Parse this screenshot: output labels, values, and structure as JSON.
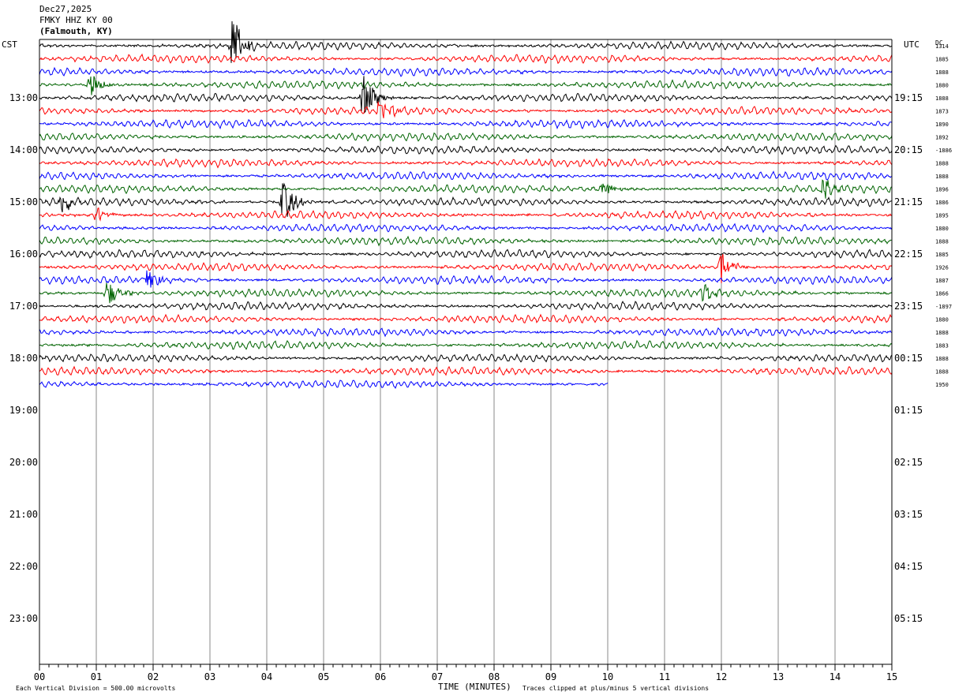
{
  "header": {
    "date": "Dec27,2025",
    "station": "FMKY HHZ KY 00",
    "location": "(Falmouth, KY)"
  },
  "axes": {
    "left_label": "CST",
    "right_label": "UTC",
    "dc_label": "DC"
  },
  "footer": {
    "vertical_division": "Each Vertical Division =  500.00 microvolts",
    "xlabel": "TIME (MINUTES)",
    "clip_note": "Traces clipped at plus/minus 5 vertical divisions"
  },
  "chart_data": {
    "type": "line",
    "title": "FMKY HHZ KY 00",
    "xlabel": "TIME (MINUTES)",
    "x_range": [
      0,
      15
    ],
    "x_ticks": [
      "00",
      "01",
      "02",
      "03",
      "04",
      "05",
      "06",
      "07",
      "08",
      "09",
      "10",
      "11",
      "12",
      "13",
      "14",
      "15"
    ],
    "rows_per_hour": 4,
    "left_hour_labels": [
      "13:00",
      "14:00",
      "15:00",
      "16:00",
      "17:00",
      "18:00",
      "19:00",
      "20:00",
      "21:00",
      "22:00",
      "23:00"
    ],
    "right_hour_labels": [
      "19:15",
      "20:15",
      "21:15",
      "22:15",
      "23:15",
      "00:15",
      "01:15",
      "02:15",
      "03:15",
      "04:15",
      "05:15"
    ],
    "trace_colors": [
      "#000000",
      "#ff0000",
      "#0000ff",
      "#006400"
    ],
    "trace_count": 27,
    "last_trace_end_minute": 10,
    "dc_offsets": [
      "1314",
      "1885",
      "1888",
      "1880",
      "1888",
      "1873",
      "1890",
      "1892",
      "-1886",
      "1888",
      "1888",
      "1896",
      "1886",
      "1895",
      "1880",
      "1888",
      "1885",
      "1926",
      "1887",
      "1866",
      "-1897",
      "1880",
      "1888",
      "1883",
      "1888",
      "1888",
      "1950"
    ],
    "events": [
      {
        "trace": 0,
        "minute": 3.4,
        "amp": 5
      },
      {
        "trace": 3,
        "minute": 0.9,
        "amp": 2
      },
      {
        "trace": 4,
        "minute": 5.7,
        "amp": 4
      },
      {
        "trace": 5,
        "minute": 6.0,
        "amp": 2
      },
      {
        "trace": 11,
        "minute": 9.9,
        "amp": 1.5
      },
      {
        "trace": 11,
        "minute": 13.8,
        "amp": 2.5
      },
      {
        "trace": 12,
        "minute": 0.4,
        "amp": 2
      },
      {
        "trace": 12,
        "minute": 4.3,
        "amp": 4
      },
      {
        "trace": 13,
        "minute": 1.0,
        "amp": 1.5
      },
      {
        "trace": 17,
        "minute": 12.0,
        "amp": 2.5
      },
      {
        "trace": 18,
        "minute": 1.9,
        "amp": 2
      },
      {
        "trace": 19,
        "minute": 1.2,
        "amp": 2.5
      },
      {
        "trace": 19,
        "minute": 11.7,
        "amp": 1.5
      }
    ]
  }
}
